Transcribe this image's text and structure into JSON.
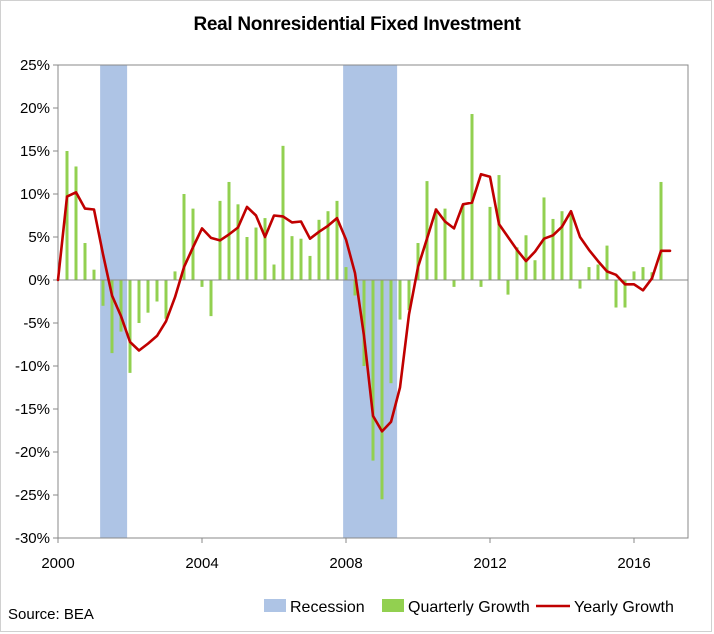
{
  "chart_data": {
    "type": "bar+line",
    "title": "Real Nonresidential Fixed Investment",
    "source": "Source: BEA",
    "xlabel": "",
    "ylabel": "",
    "xlim": [
      2000.0,
      2017.5
    ],
    "ylim": [
      -30,
      25
    ],
    "x_ticks": [
      2000,
      2004,
      2008,
      2012,
      2016
    ],
    "x_tick_labels": [
      "2000",
      "2004",
      "2008",
      "2012",
      "2016"
    ],
    "y_ticks": [
      -30,
      -25,
      -20,
      -15,
      -10,
      -5,
      0,
      5,
      10,
      15,
      20,
      25
    ],
    "y_tick_labels": [
      "-30%",
      "-25%",
      "-20%",
      "-15%",
      "-10%",
      "-5%",
      "0%",
      "5%",
      "10%",
      "15%",
      "20%",
      "25%"
    ],
    "grid": false,
    "legend_position": "bottom",
    "recessions": [
      {
        "start": 2001.17,
        "end": 2001.92
      },
      {
        "start": 2007.92,
        "end": 2009.42
      }
    ],
    "x": [
      2000.25,
      2000.5,
      2000.75,
      2001.0,
      2001.25,
      2001.5,
      2001.75,
      2002.0,
      2002.25,
      2002.5,
      2002.75,
      2003.0,
      2003.25,
      2003.5,
      2003.75,
      2004.0,
      2004.25,
      2004.5,
      2004.75,
      2005.0,
      2005.25,
      2005.5,
      2005.75,
      2006.0,
      2006.25,
      2006.5,
      2006.75,
      2007.0,
      2007.25,
      2007.5,
      2007.75,
      2008.0,
      2008.25,
      2008.5,
      2008.75,
      2009.0,
      2009.25,
      2009.5,
      2009.75,
      2010.0,
      2010.25,
      2010.5,
      2010.75,
      2011.0,
      2011.25,
      2011.5,
      2011.75,
      2012.0,
      2012.25,
      2012.5,
      2012.75,
      2013.0,
      2013.25,
      2013.5,
      2013.75,
      2014.0,
      2014.25,
      2014.5,
      2014.75,
      2015.0,
      2015.25,
      2015.5,
      2015.75,
      2016.0,
      2016.25,
      2016.5,
      2016.75,
      2017.0
    ],
    "series": [
      {
        "name": "Quarterly Growth",
        "type": "bar",
        "color": "#92d050",
        "values": [
          15.0,
          13.2,
          4.3,
          1.2,
          -3.0,
          -8.5,
          -6.0,
          -10.8,
          -5.0,
          -3.8,
          -2.5,
          -4.5,
          1.0,
          10.0,
          8.3,
          -0.8,
          -4.2,
          9.2,
          11.4,
          8.8,
          5.0,
          6.1,
          7.2,
          1.8,
          15.6,
          5.1,
          4.8,
          2.8,
          7.0,
          8.0,
          9.2,
          1.5,
          -1.8,
          -10.0,
          -21.0,
          -25.5,
          -12.0,
          -4.6,
          -3.5,
          4.3,
          11.5,
          8.3,
          8.3,
          -0.8,
          8.8,
          19.3,
          -0.8,
          8.5,
          12.2,
          -1.7,
          3.8,
          5.2,
          2.3,
          9.6,
          7.1,
          8.0,
          7.8,
          -1.0,
          1.5,
          1.8,
          4.0,
          -3.2,
          -3.2,
          1.0,
          1.5,
          0.9,
          11.4,
          0.0
        ]
      },
      {
        "name": "Yearly Growth",
        "type": "line",
        "color": "#c00000",
        "values": [
          9.7,
          10.2,
          8.3,
          8.2,
          3.0,
          -1.8,
          -4.2,
          -7.2,
          -8.2,
          -7.4,
          -6.5,
          -4.8,
          -2.0,
          1.5,
          3.8,
          6.0,
          4.9,
          4.6,
          5.3,
          6.1,
          8.5,
          7.5,
          5.0,
          7.5,
          7.4,
          6.7,
          6.8,
          4.8,
          5.6,
          6.3,
          7.2,
          4.7,
          0.8,
          -6.5,
          -15.8,
          -17.6,
          -16.5,
          -12.5,
          -4.0,
          1.5,
          4.8,
          8.2,
          6.8,
          6.0,
          8.8,
          9.0,
          12.3,
          12.0,
          6.5,
          5.0,
          3.5,
          2.2,
          3.3,
          4.8,
          5.2,
          6.2,
          8.0,
          5.0,
          3.5,
          2.2,
          1.0,
          0.6,
          -0.5,
          -0.5,
          -1.2,
          0.2,
          3.4,
          3.4
        ]
      }
    ],
    "legend": [
      "Recession",
      "Quarterly Growth",
      "Yearly Growth"
    ],
    "colors": {
      "recession": "#aec4e5",
      "axis": "#888888",
      "border": "#d0d0d0"
    }
  }
}
